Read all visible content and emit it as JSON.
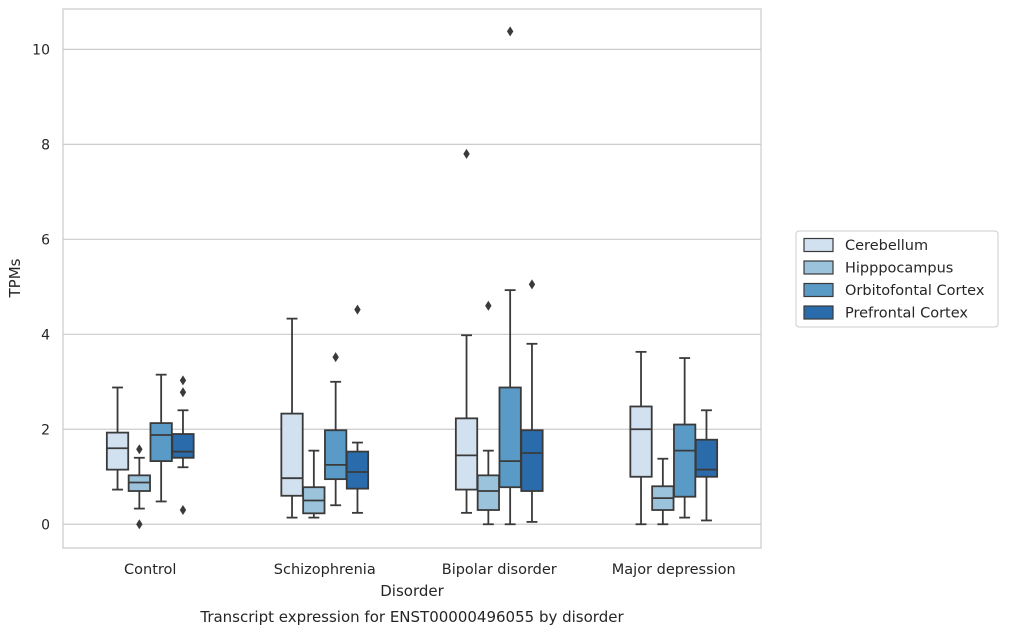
{
  "chart_data": {
    "type": "box",
    "caption": "Transcript expression for ENST00000496055 by disorder",
    "xlabel": "Disorder",
    "ylabel": "TPMs",
    "ylim": [
      -0.5,
      10.85
    ],
    "yticks": [
      0,
      2,
      4,
      6,
      8,
      10
    ],
    "grid": true,
    "legend_position": "right",
    "categories": [
      "Control",
      "Schizophrenia",
      "Bipolar disorder",
      "Major depression"
    ],
    "series": [
      {
        "name": "Cerebellum",
        "color": "#d2e1f0",
        "boxes": [
          {
            "whislo": 0.73,
            "q1": 1.15,
            "med": 1.6,
            "q3": 1.93,
            "whishi": 2.88,
            "fliers": []
          },
          {
            "whislo": 0.14,
            "q1": 0.6,
            "med": 0.97,
            "q3": 2.33,
            "whishi": 4.33,
            "fliers": []
          },
          {
            "whislo": 0.24,
            "q1": 0.73,
            "med": 1.45,
            "q3": 2.23,
            "whishi": 3.98,
            "fliers": [
              7.8
            ]
          },
          {
            "whislo": 0.0,
            "q1": 1.0,
            "med": 2.0,
            "q3": 2.48,
            "whishi": 3.63,
            "fliers": []
          }
        ]
      },
      {
        "name": "Hipppocampus",
        "color": "#9cc3dc",
        "boxes": [
          {
            "whislo": 0.33,
            "q1": 0.7,
            "med": 0.88,
            "q3": 1.03,
            "whishi": 1.4,
            "fliers": [
              1.58,
              0.0
            ]
          },
          {
            "whislo": 0.14,
            "q1": 0.23,
            "med": 0.5,
            "q3": 0.78,
            "whishi": 1.55,
            "fliers": []
          },
          {
            "whislo": 0.0,
            "q1": 0.3,
            "med": 0.7,
            "q3": 1.03,
            "whishi": 1.55,
            "fliers": [
              4.6
            ]
          },
          {
            "whislo": 0.0,
            "q1": 0.3,
            "med": 0.55,
            "q3": 0.8,
            "whishi": 1.38,
            "fliers": []
          }
        ]
      },
      {
        "name": "Orbitofontal Cortex",
        "color": "#5a9ac6",
        "boxes": [
          {
            "whislo": 0.48,
            "q1": 1.33,
            "med": 1.88,
            "q3": 2.13,
            "whishi": 3.15,
            "fliers": []
          },
          {
            "whislo": 0.4,
            "q1": 0.95,
            "med": 1.25,
            "q3": 1.98,
            "whishi": 3.0,
            "fliers": [
              3.52
            ]
          },
          {
            "whislo": 0.0,
            "q1": 0.78,
            "med": 1.33,
            "q3": 2.88,
            "whishi": 4.93,
            "fliers": [
              10.38
            ]
          },
          {
            "whislo": 0.14,
            "q1": 0.58,
            "med": 1.55,
            "q3": 2.1,
            "whishi": 3.5,
            "fliers": []
          }
        ]
      },
      {
        "name": "Prefrontal Cortex",
        "color": "#2a6bab",
        "boxes": [
          {
            "whislo": 1.2,
            "q1": 1.4,
            "med": 1.53,
            "q3": 1.9,
            "whishi": 2.4,
            "fliers": [
              3.03,
              2.78,
              0.3
            ]
          },
          {
            "whislo": 0.24,
            "q1": 0.75,
            "med": 1.1,
            "q3": 1.53,
            "whishi": 1.72,
            "fliers": [
              4.52
            ]
          },
          {
            "whislo": 0.05,
            "q1": 0.7,
            "med": 1.5,
            "q3": 1.98,
            "whishi": 3.8,
            "fliers": [
              5.05
            ]
          },
          {
            "whislo": 0.08,
            "q1": 1.0,
            "med": 1.15,
            "q3": 1.78,
            "whishi": 2.4,
            "fliers": []
          }
        ]
      }
    ]
  }
}
